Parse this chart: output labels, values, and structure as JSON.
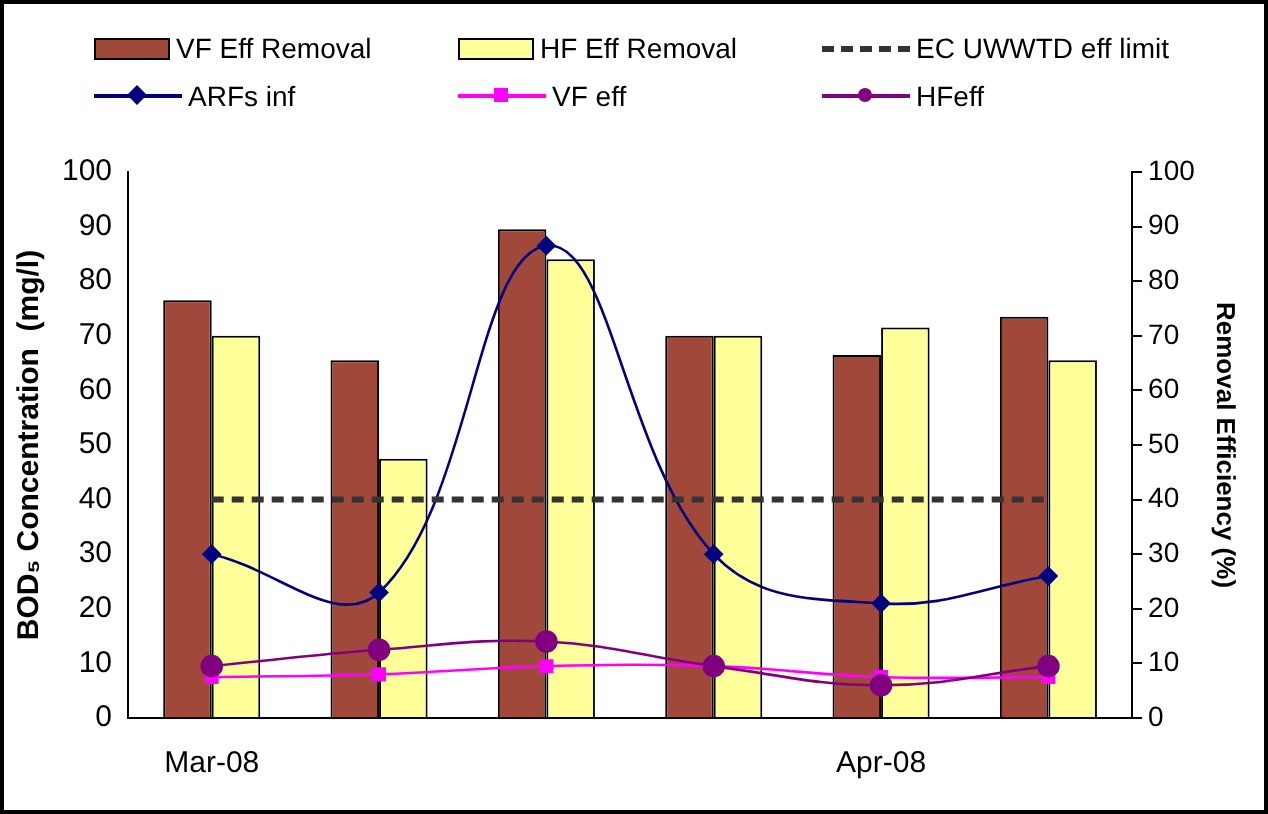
{
  "chart_data": {
    "type": "bar",
    "ylabel": "BOD₅ Concentration  (mg/l)",
    "y2label": "Removal Efficiency (%)",
    "categories": [
      "Mar-08",
      null,
      null,
      null,
      "Apr-08",
      null
    ],
    "series": [
      {
        "name": "VF Eff Removal",
        "axis": "y2",
        "color": "#a0483a",
        "values": [
          76.5,
          65.5,
          89.5,
          70,
          66.5,
          73.5
        ]
      },
      {
        "name": "HF Eff Removal",
        "axis": "y2",
        "color": "#ffff99",
        "values": [
          70,
          47.5,
          84,
          70,
          71.5,
          65.5
        ]
      },
      {
        "name": "ARFs inf",
        "type": "line",
        "color": "#000080",
        "marker": "diamond",
        "values": [
          30,
          23,
          86.5,
          30,
          21,
          26
        ]
      },
      {
        "name": "VF eff",
        "type": "line",
        "color": "#ff00ff",
        "marker": "square",
        "values": [
          7.5,
          8,
          9.5,
          9.5,
          7.5,
          7.5
        ]
      },
      {
        "name": "HFeff",
        "type": "line",
        "color": "#800080",
        "marker": "circle",
        "values": [
          9.5,
          12.5,
          14,
          9.5,
          6,
          9.5
        ]
      }
    ],
    "ref_lines": [
      {
        "axis": "y",
        "value": 40,
        "label": "EC UWWTD eff limit",
        "color": "#333333",
        "line_style": "dashed"
      }
    ],
    "ylim": [
      0,
      100
    ],
    "yticks": [
      0,
      10,
      20,
      30,
      40,
      50,
      60,
      70,
      80,
      90,
      100
    ],
    "y2lim": [
      0,
      100
    ],
    "y2ticks": [
      0,
      10,
      20,
      30,
      40,
      50,
      60,
      70,
      80,
      90,
      100
    ],
    "grid": false,
    "legend": "top",
    "line_style": "solid"
  }
}
